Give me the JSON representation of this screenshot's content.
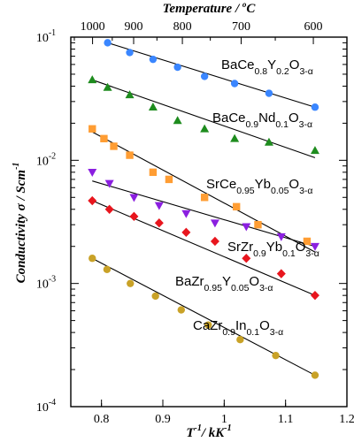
{
  "chart_data": {
    "type": "scatter",
    "x_axis": {
      "label_parts": [
        "T",
        "-1",
        "/  kK",
        "-1"
      ],
      "ticks": [
        0.8,
        0.9,
        1.0,
        1.1,
        1.2
      ],
      "tick_labels": [
        "0.8",
        "0.9",
        "1",
        "1.1",
        "1.2"
      ],
      "xlim": [
        0.75,
        1.2
      ]
    },
    "y_axis": {
      "label_parts": [
        "Conductivity σ  /  Scm",
        "-1"
      ],
      "scale": "log",
      "ticks": [
        0.0001,
        0.001,
        0.01,
        0.1
      ],
      "tick_bases": [
        "10",
        "10",
        "10",
        "10"
      ],
      "tick_exponents": [
        "-4",
        "-3",
        "-2",
        "-1"
      ],
      "ylim": [
        0.0001,
        0.1
      ]
    },
    "top_axis": {
      "label_parts": [
        "Temperature  /  ",
        "o",
        "C"
      ],
      "ticks_celsius": [
        1000,
        900,
        800,
        700,
        600
      ],
      "tick_labels": [
        "1000",
        "900",
        "800",
        "700",
        "600"
      ]
    },
    "series": [
      {
        "marker": "circle",
        "color": "#3a86ff",
        "label_parts": [
          [
            "BaCe",
            "main"
          ],
          [
            "0.8",
            "sub"
          ],
          [
            "Y",
            "main"
          ],
          [
            "0.2",
            "sub"
          ],
          [
            "O",
            "main"
          ],
          [
            "3-α",
            "sub"
          ]
        ],
        "x": [
          0.81,
          0.846,
          0.884,
          0.924,
          0.968,
          1.017,
          1.073,
          1.148
        ],
        "y": [
          0.09,
          0.075,
          0.066,
          0.057,
          0.048,
          0.042,
          0.035,
          0.027
        ],
        "fit": [
          [
            0.81,
            0.09
          ],
          [
            1.148,
            0.027
          ]
        ]
      },
      {
        "marker": "triangle-up",
        "color": "#1e8c1e",
        "label_parts": [
          [
            "BaCe",
            "main"
          ],
          [
            "0.9",
            "sub"
          ],
          [
            "Nd",
            "main"
          ],
          [
            "0.1",
            "sub"
          ],
          [
            "O",
            "main"
          ],
          [
            "3-α",
            "sub"
          ]
        ],
        "x": [
          0.785,
          0.81,
          0.846,
          0.884,
          0.924,
          0.968,
          1.017,
          1.073,
          1.148
        ],
        "y": [
          0.045,
          0.039,
          0.034,
          0.027,
          0.021,
          0.018,
          0.015,
          0.014,
          0.012
        ],
        "fit": [
          [
            0.785,
            0.045
          ],
          [
            1.148,
            0.0105
          ]
        ]
      },
      {
        "marker": "square",
        "color": "#ff9d33",
        "label_parts": [
          [
            "SrCe",
            "main"
          ],
          [
            "0.95",
            "sub"
          ],
          [
            "Yb",
            "main"
          ],
          [
            "0.05",
            "sub"
          ],
          [
            "O",
            "main"
          ],
          [
            "3-α",
            "sub"
          ]
        ],
        "x": [
          0.785,
          0.804,
          0.82,
          0.846,
          0.884,
          0.91,
          0.968,
          1.02,
          1.055,
          1.135
        ],
        "y": [
          0.018,
          0.015,
          0.013,
          0.011,
          0.008,
          0.007,
          0.005,
          0.0042,
          0.003,
          0.0022
        ],
        "fit": [
          [
            0.785,
            0.017
          ],
          [
            1.148,
            0.0018
          ]
        ]
      },
      {
        "marker": "triangle-down",
        "color": "#8b1fe0",
        "label_parts": [
          [
            "SrZr",
            "main"
          ],
          [
            "0.9",
            "sub"
          ],
          [
            "Yb",
            "main"
          ],
          [
            "0.1",
            "sub"
          ],
          [
            "O",
            "main"
          ],
          [
            "3-α",
            "sub"
          ]
        ],
        "x": [
          0.785,
          0.813,
          0.853,
          0.894,
          0.938,
          0.985,
          1.036,
          1.093,
          1.148
        ],
        "y": [
          0.008,
          0.0065,
          0.005,
          0.0043,
          0.0037,
          0.0031,
          0.0029,
          0.0024,
          0.002
        ],
        "fit": [
          [
            0.785,
            0.0068
          ],
          [
            1.148,
            0.002
          ]
        ]
      },
      {
        "marker": "diamond",
        "color": "#e8161e",
        "label_parts": [
          [
            "BaZr",
            "main"
          ],
          [
            "0.95",
            "sub"
          ],
          [
            "Y",
            "main"
          ],
          [
            "0.05",
            "sub"
          ],
          [
            "O",
            "main"
          ],
          [
            "3-α",
            "sub"
          ]
        ],
        "x": [
          0.785,
          0.813,
          0.853,
          0.894,
          0.938,
          0.985,
          1.036,
          1.093,
          1.148
        ],
        "y": [
          0.0047,
          0.004,
          0.0035,
          0.0031,
          0.0026,
          0.0022,
          0.0016,
          0.0012,
          0.0008
        ],
        "fit": [
          [
            0.785,
            0.0047
          ],
          [
            1.148,
            0.0008
          ]
        ]
      },
      {
        "marker": "circle",
        "color": "#c9a227",
        "label_parts": [
          [
            "CaZr",
            "main"
          ],
          [
            "0.9",
            "sub"
          ],
          [
            "In",
            "main"
          ],
          [
            "0.1",
            "sub"
          ],
          [
            "O",
            "main"
          ],
          [
            "3-α",
            "sub"
          ]
        ],
        "x": [
          0.785,
          0.809,
          0.847,
          0.888,
          0.93,
          0.974,
          1.026,
          1.084,
          1.148
        ],
        "y": [
          0.0016,
          0.0013,
          0.001,
          0.00079,
          0.00061,
          0.00046,
          0.00035,
          0.00026,
          0.00018
        ],
        "fit": [
          [
            0.785,
            0.0016
          ],
          [
            1.148,
            0.00018
          ]
        ]
      }
    ],
    "grid": false,
    "legend": "inline labels next to each series"
  }
}
